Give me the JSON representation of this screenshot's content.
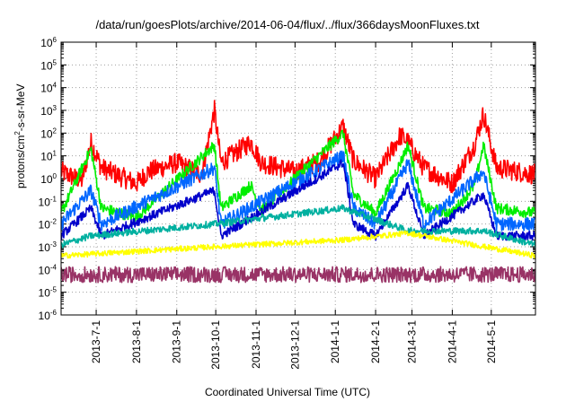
{
  "chart_data": {
    "type": "line",
    "title": "/data/run/goesPlots/archive/2014-06-04/flux/../flux/366daysMoonFluxes.txt",
    "xlabel": "Coordinated Universal Time (UTC)",
    "ylabel_parts": [
      "protons/cm",
      "2",
      "-s-sr-MeV"
    ],
    "yscale": "log",
    "ylim": [
      1e-06,
      1000000.0
    ],
    "xlim": [
      "2013-06-04",
      "2014-06-04"
    ],
    "grid": true,
    "yticks": [
      {
        "base": "10",
        "exp": "-6"
      },
      {
        "base": "10",
        "exp": "-5"
      },
      {
        "base": "10",
        "exp": "-4"
      },
      {
        "base": "10",
        "exp": "-3"
      },
      {
        "base": "10",
        "exp": "-2"
      },
      {
        "base": "10",
        "exp": "-1"
      },
      {
        "base": "10",
        "exp": "0"
      },
      {
        "base": "10",
        "exp": "1"
      },
      {
        "base": "10",
        "exp": "2"
      },
      {
        "base": "10",
        "exp": "3"
      },
      {
        "base": "10",
        "exp": "4"
      },
      {
        "base": "10",
        "exp": "5"
      },
      {
        "base": "10",
        "exp": "6"
      }
    ],
    "xticks": [
      {
        "date": "2013-07-01",
        "label": "2013-7-1"
      },
      {
        "date": "2013-08-01",
        "label": "2013-8-1"
      },
      {
        "date": "2013-09-01",
        "label": "2013-9-1"
      },
      {
        "date": "2013-10-01",
        "label": "2013-10-1"
      },
      {
        "date": "2013-11-01",
        "label": "2013-11-1"
      },
      {
        "date": "2013-12-01",
        "label": "2013-12-1"
      },
      {
        "date": "2014-01-01",
        "label": "2014-1-1"
      },
      {
        "date": "2014-02-01",
        "label": "2014-2-1"
      },
      {
        "date": "2014-03-01",
        "label": "2014-3-1"
      },
      {
        "date": "2014-04-01",
        "label": "2014-4-1"
      },
      {
        "date": "2014-05-01",
        "label": "2014-5-1"
      }
    ],
    "series": [
      {
        "color": "#ff0000",
        "baseline": 2,
        "noise": 0.45,
        "points": [
          [
            "2013-06-04",
            2
          ],
          [
            "2013-06-20",
            0.8
          ],
          [
            "2013-06-27",
            40
          ],
          [
            "2013-07-05",
            3
          ],
          [
            "2013-08-01",
            0.6
          ],
          [
            "2013-08-10",
            2
          ],
          [
            "2013-09-01",
            5
          ],
          [
            "2013-09-20",
            1.5
          ],
          [
            "2013-09-30",
            1000
          ],
          [
            "2013-10-05",
            5
          ],
          [
            "2013-10-28",
            40
          ],
          [
            "2013-11-05",
            5
          ],
          [
            "2013-12-01",
            2
          ],
          [
            "2013-12-20",
            6
          ],
          [
            "2014-01-07",
            200
          ],
          [
            "2014-01-15",
            6
          ],
          [
            "2014-02-01",
            1
          ],
          [
            "2014-02-20",
            80
          ],
          [
            "2014-02-26",
            40
          ],
          [
            "2014-03-10",
            3
          ],
          [
            "2014-04-01",
            0.6
          ],
          [
            "2014-04-18",
            30
          ],
          [
            "2014-04-25",
            700
          ],
          [
            "2014-05-05",
            3
          ],
          [
            "2014-06-04",
            1.5
          ]
        ]
      },
      {
        "color": "#00ee00",
        "baseline": 0.03,
        "noise": 0.25,
        "points": [
          [
            "2013-06-04",
            0.03
          ],
          [
            "2013-06-27",
            20
          ],
          [
            "2013-07-05",
            0.05
          ],
          [
            "2013-08-01",
            0.02
          ],
          [
            "2013-09-30",
            30
          ],
          [
            "2013-10-05",
            0.05
          ],
          [
            "2013-10-28",
            0.5
          ],
          [
            "2013-11-05",
            0.04
          ],
          [
            "2014-01-07",
            100
          ],
          [
            "2014-01-15",
            0.2
          ],
          [
            "2014-02-01",
            0.03
          ],
          [
            "2014-02-20",
            5
          ],
          [
            "2014-02-26",
            30
          ],
          [
            "2014-03-10",
            0.05
          ],
          [
            "2014-04-01",
            0.03
          ],
          [
            "2014-04-18",
            0.5
          ],
          [
            "2014-04-25",
            30
          ],
          [
            "2014-05-05",
            0.05
          ],
          [
            "2014-06-04",
            0.03
          ]
        ]
      },
      {
        "color": "#0066ff",
        "baseline": 0.01,
        "noise": 0.3,
        "points": [
          [
            "2013-06-04",
            0.01
          ],
          [
            "2013-06-27",
            0.3
          ],
          [
            "2013-07-05",
            0.01
          ],
          [
            "2013-09-30",
            3
          ],
          [
            "2013-10-05",
            0.01
          ],
          [
            "2014-01-07",
            10
          ],
          [
            "2014-01-15",
            0.05
          ],
          [
            "2014-02-01",
            0.01
          ],
          [
            "2014-02-26",
            5
          ],
          [
            "2014-03-10",
            0.01
          ],
          [
            "2014-04-25",
            2
          ],
          [
            "2014-05-05",
            0.01
          ],
          [
            "2014-06-04",
            0.01
          ]
        ]
      },
      {
        "color": "#0000cc",
        "baseline": 0.003,
        "noise": 0.2,
        "points": [
          [
            "2013-06-04",
            0.003
          ],
          [
            "2013-06-27",
            0.05
          ],
          [
            "2013-07-05",
            0.003
          ],
          [
            "2013-09-30",
            0.3
          ],
          [
            "2013-10-05",
            0.003
          ],
          [
            "2014-01-07",
            5
          ],
          [
            "2014-01-15",
            0.01
          ],
          [
            "2014-02-01",
            0.003
          ],
          [
            "2014-02-26",
            0.5
          ],
          [
            "2014-03-10",
            0.003
          ],
          [
            "2014-04-25",
            0.2
          ],
          [
            "2014-05-05",
            0.003
          ],
          [
            "2014-06-04",
            0.003
          ]
        ]
      },
      {
        "color": "#00b0a0",
        "baseline": 0.0012,
        "noise": 0.15,
        "points": [
          [
            "2013-06-04",
            0.0012
          ],
          [
            "2013-06-27",
            0.003
          ],
          [
            "2013-09-30",
            0.01
          ],
          [
            "2014-01-07",
            0.05
          ],
          [
            "2014-02-26",
            0.005
          ],
          [
            "2014-04-25",
            0.005
          ],
          [
            "2014-06-04",
            0.0012
          ]
        ]
      },
      {
        "color": "#ffff00",
        "baseline": 0.0004,
        "noise": 0.12,
        "points": [
          [
            "2013-06-04",
            0.0004
          ],
          [
            "2013-09-30",
            0.001
          ],
          [
            "2014-01-07",
            0.002
          ],
          [
            "2014-02-26",
            0.004
          ],
          [
            "2014-06-04",
            0.0004
          ]
        ]
      },
      {
        "color": "#993366",
        "baseline": 6e-05,
        "noise": 0.35,
        "points": [
          [
            "2013-06-04",
            6e-05
          ],
          [
            "2014-06-04",
            6e-05
          ]
        ]
      }
    ]
  }
}
